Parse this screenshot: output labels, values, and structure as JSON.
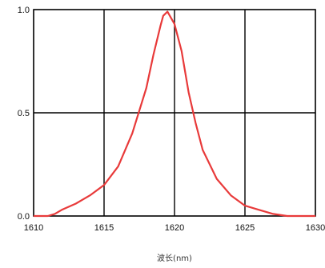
{
  "chart_data": {
    "type": "line",
    "title": "",
    "xlabel": "波长(nm)",
    "ylabel": "",
    "xlim": [
      1610,
      1630
    ],
    "ylim": [
      0.0,
      1.0
    ],
    "x_ticks": [
      "1610",
      "1615",
      "1620",
      "1625",
      "1630"
    ],
    "y_ticks": [
      "0.0",
      "0.5",
      "1.0"
    ],
    "grid": true,
    "series": [
      {
        "color": "#e83a3a",
        "x": [
          1610.0,
          1611.0,
          1611.5,
          1612.0,
          1613.0,
          1614.0,
          1615.0,
          1616.0,
          1617.0,
          1618.0,
          1618.5,
          1619.0,
          1619.2,
          1619.5,
          1620.0,
          1620.5,
          1621.0,
          1621.5,
          1622.0,
          1623.0,
          1624.0,
          1625.0,
          1626.0,
          1627.0,
          1628.0,
          1629.0,
          1630.0
        ],
        "y": [
          0.0,
          0.0,
          0.01,
          0.03,
          0.06,
          0.1,
          0.15,
          0.24,
          0.4,
          0.62,
          0.78,
          0.92,
          0.97,
          0.99,
          0.93,
          0.8,
          0.6,
          0.45,
          0.32,
          0.18,
          0.1,
          0.05,
          0.03,
          0.01,
          0.0,
          0.0,
          0.0
        ]
      }
    ]
  }
}
